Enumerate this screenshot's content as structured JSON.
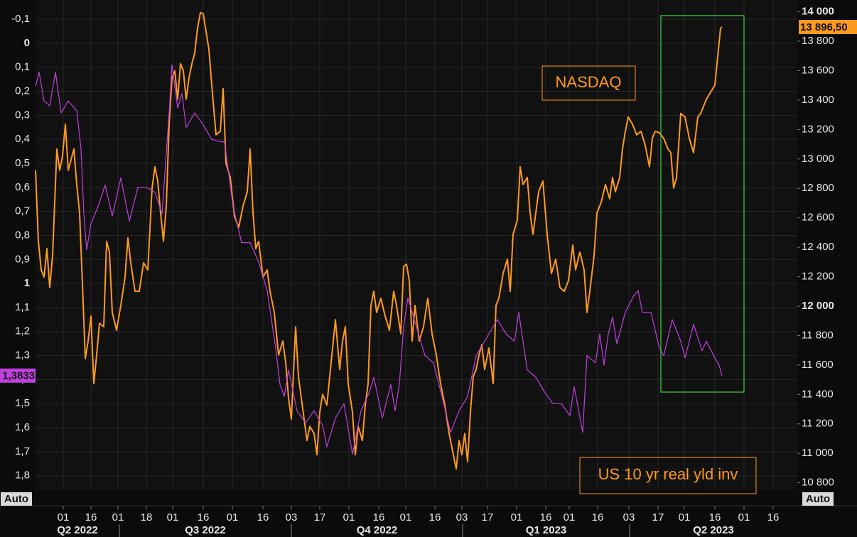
{
  "chart_data": {
    "type": "line",
    "annotations": [
      "NASDAQ",
      "US 10 yr real yld inv"
    ],
    "axis_mode_labels": [
      "Auto",
      "Auto"
    ],
    "xlim": [
      0,
      107.2
    ],
    "xticks": [
      {
        "value": 3.9,
        "label": "01"
      },
      {
        "value": 7.8,
        "label": "16"
      },
      {
        "value": 11.6,
        "label": "01"
      },
      {
        "value": 15.6,
        "label": "18"
      },
      {
        "value": 19.3,
        "label": "01"
      },
      {
        "value": 23.6,
        "label": "16"
      },
      {
        "value": 27.7,
        "label": "01"
      },
      {
        "value": 32,
        "label": "16"
      },
      {
        "value": 36,
        "label": "03"
      },
      {
        "value": 40,
        "label": "17"
      },
      {
        "value": 44.1,
        "label": "01"
      },
      {
        "value": 48.3,
        "label": "16"
      },
      {
        "value": 52.1,
        "label": "01"
      },
      {
        "value": 56.2,
        "label": "16"
      },
      {
        "value": 60,
        "label": "03"
      },
      {
        "value": 63.6,
        "label": "17"
      },
      {
        "value": 67.7,
        "label": "01"
      },
      {
        "value": 71.8,
        "label": "16"
      },
      {
        "value": 75.1,
        "label": "01"
      },
      {
        "value": 79.1,
        "label": "16"
      },
      {
        "value": 83.5,
        "label": "03"
      },
      {
        "value": 87.6,
        "label": "17"
      },
      {
        "value": 91.3,
        "label": "01"
      },
      {
        "value": 95.6,
        "label": "16"
      },
      {
        "value": 99.7,
        "label": "01"
      },
      {
        "value": 103.8,
        "label": "16"
      }
    ],
    "quarters": [
      "Q2 2022",
      "Q3 2022",
      "Q4 2022",
      "Q1 2023",
      "Q2 2023"
    ],
    "quarter_ticks": [
      11.8,
      36,
      60.1,
      83.6
    ],
    "ylim": [
      -0.18,
      1.86
    ],
    "y_inverted": true,
    "yticks": [
      {
        "value": -0.1,
        "label": "-0,1"
      },
      0,
      {
        "value": 0.1,
        "label": "0,1"
      },
      {
        "value": 0.2,
        "label": "0,2"
      },
      {
        "value": 0.3,
        "label": "0,3"
      },
      {
        "value": 0.4,
        "label": "0,4"
      },
      {
        "value": 0.5,
        "label": "0,5"
      },
      {
        "value": 0.6,
        "label": "0,6"
      },
      {
        "value": 0.7,
        "label": "0,7"
      },
      {
        "value": 0.8,
        "label": "0,8"
      },
      {
        "value": 0.9,
        "label": "0,9"
      },
      1,
      {
        "value": 1.1,
        "label": "1,1"
      },
      {
        "value": 1.2,
        "label": "1,2"
      },
      {
        "value": 1.3,
        "label": "1,3"
      },
      {
        "value": 1.4,
        "label": "1,4"
      },
      {
        "value": 1.5,
        "label": "1,5"
      },
      {
        "value": 1.6,
        "label": "1,6"
      },
      {
        "value": 1.7,
        "label": "1,7"
      },
      {
        "value": 1.8,
        "label": "1,8"
      }
    ],
    "y2lim": [
      10750,
      14080
    ],
    "y2ticks": [
      {
        "value": 10800,
        "label": "10 800"
      },
      {
        "value": 11000,
        "label": "11 000"
      },
      {
        "value": 11200,
        "label": "11 200"
      },
      {
        "value": 11400,
        "label": "11 400"
      },
      {
        "value": 11600,
        "label": "11 600"
      },
      {
        "value": 11800,
        "label": "11 800"
      },
      {
        "value": 12000,
        "label": "12 000"
      },
      {
        "value": 12200,
        "label": "12 200"
      },
      {
        "value": 12400,
        "label": "12 400"
      },
      {
        "value": 12600,
        "label": "12 600"
      },
      {
        "value": 12800,
        "label": "12 800"
      },
      {
        "value": 13000,
        "label": "13 000"
      },
      {
        "value": 13200,
        "label": "13 200"
      },
      {
        "value": 13400,
        "label": "13 400"
      },
      {
        "value": 13600,
        "label": "13 600"
      },
      {
        "value": 13800,
        "label": "13 800"
      },
      {
        "value": 14000,
        "label": "14 000"
      }
    ],
    "grid": true,
    "series": [
      {
        "name": "NASDAQ",
        "axis": "y2",
        "color": "#ff9a1f",
        "last_label": "13 896,50",
        "x": [
          0,
          0.4,
          0.8,
          1.2,
          1.6,
          2,
          2.4,
          3,
          3.4,
          3.8,
          4.2,
          4.6,
          5,
          5.4,
          5.8,
          6.2,
          6.6,
          7,
          7.4,
          7.8,
          8.2,
          8.6,
          9,
          9.6,
          10,
          10.4,
          10.8,
          11.4,
          12,
          12.6,
          13,
          13.4,
          14,
          14.6,
          15.2,
          15.8,
          16.4,
          16.8,
          17.2,
          17.6,
          18,
          18.4,
          18.8,
          19.2,
          19.6,
          20,
          20.4,
          20.8,
          21.2,
          21.6,
          22,
          22.4,
          22.8,
          23.2,
          23.6,
          24,
          24.4,
          24.8,
          25.4,
          26,
          26.4,
          26.8,
          27.4,
          28,
          28.6,
          29.2,
          29.8,
          30.2,
          30.6,
          31,
          31.4,
          32,
          32.6,
          33,
          33.6,
          34.2,
          34.8,
          35.2,
          35.6,
          36,
          36.6,
          37,
          37.6,
          38.2,
          38.6,
          39.2,
          39.6,
          40,
          40.4,
          41,
          41.6,
          42.2,
          42.8,
          43.2,
          43.6,
          44,
          44.6,
          45,
          45.4,
          46,
          46.4,
          46.8,
          47.2,
          47.6,
          48,
          48.6,
          49.2,
          49.8,
          50.4,
          50.8,
          51.4,
          51.8,
          52.2,
          52.6,
          53,
          53.4,
          54,
          54.6,
          55.2,
          55.8,
          56.4,
          57,
          57.6,
          58.2,
          58.8,
          59.2,
          59.6,
          60,
          60.4,
          60.8,
          61.2,
          61.6,
          62,
          62.4,
          62.8,
          63.2,
          63.8,
          64.4,
          64.8,
          65.2,
          65.8,
          66.4,
          66.8,
          67.2,
          67.8,
          68.2,
          68.6,
          69.2,
          69.6,
          70,
          70.4,
          70.8,
          71.4,
          72,
          72.6,
          73.2,
          73.8,
          74.4,
          75,
          75.6,
          76,
          76.6,
          77.2,
          77.6,
          78,
          78.6,
          79,
          79.6,
          80.2,
          80.8,
          81.2,
          81.6,
          82.2,
          82.6,
          83,
          83.4,
          84,
          84.6,
          85.2,
          85.8,
          86.4,
          86.8,
          87.2,
          87.8,
          88.4,
          89,
          89.4,
          89.8,
          90.2,
          90.8,
          91.4,
          92,
          92.6,
          93.2,
          93.6,
          94,
          94.4,
          95,
          95.6,
          96,
          96.4,
          96.6
        ],
        "values": [
          12923,
          12440,
          12246,
          12198,
          12391,
          12126,
          12343,
          13068,
          12923,
          13019,
          13237,
          12923,
          12995,
          13068,
          12826,
          12633,
          12150,
          11643,
          11763,
          11932,
          11473,
          11667,
          11884,
          11860,
          12440,
          12367,
          11957,
          11836,
          12005,
          12198,
          12464,
          12295,
          12101,
          12101,
          12295,
          12246,
          12802,
          12947,
          12850,
          12633,
          12440,
          12681,
          13237,
          13551,
          13599,
          13406,
          13647,
          13599,
          13406,
          13551,
          13647,
          13720,
          13889,
          13995,
          13986,
          13865,
          13744,
          13502,
          13164,
          13188,
          13478,
          12971,
          12874,
          12609,
          12536,
          12681,
          12778,
          13068,
          12633,
          12391,
          12440,
          12198,
          12246,
          12101,
          11957,
          11667,
          11763,
          11618,
          11377,
          11232,
          11860,
          11522,
          11304,
          11087,
          11183,
          11135,
          10990,
          11280,
          11401,
          11328,
          11618,
          11908,
          11570,
          11763,
          11860,
          11473,
          11280,
          10990,
          11183,
          11087,
          11328,
          11473,
          12005,
          12101,
          11957,
          12053,
          11932,
          11836,
          12101,
          12005,
          11812,
          12270,
          12285,
          12174,
          11763,
          12005,
          11763,
          11860,
          12053,
          11812,
          11667,
          11473,
          11328,
          11135,
          10990,
          10894,
          11087,
          10990,
          11135,
          10942,
          11280,
          11522,
          11570,
          11667,
          11739,
          11570,
          11715,
          11473,
          12005,
          12053,
          12222,
          12319,
          12101,
          12488,
          12584,
          12947,
          12826,
          12874,
          12633,
          12488,
          12633,
          12778,
          12850,
          12488,
          12222,
          12319,
          12126,
          12101,
          12174,
          12415,
          12246,
          12367,
          12246,
          11957,
          12101,
          12343,
          12633,
          12705,
          12826,
          12729,
          12874,
          12778,
          12874,
          13068,
          13188,
          13285,
          13237,
          13164,
          13188,
          13092,
          12947,
          13140,
          13188,
          13178,
          13140,
          13068,
          13043,
          12802,
          12874,
          13309,
          13285,
          13140,
          13043,
          13285,
          13309,
          13357,
          13406,
          13454,
          13502,
          13696,
          13889,
          13896.5
        ]
      },
      {
        "name": "US 10 yr real yld inv",
        "axis": "y",
        "color": "#c040e0",
        "last_label": "1,3833",
        "x": [
          0,
          0.5,
          1.2,
          2,
          2.8,
          3.6,
          4.6,
          5.8,
          6.4,
          6.8,
          7.2,
          7.8,
          8.8,
          9.8,
          10.8,
          12,
          13.2,
          14.4,
          15.6,
          16.8,
          17.8,
          18.8,
          19.2,
          20,
          20.6,
          21.2,
          22.4,
          23.6,
          24.8,
          26,
          26.6,
          27.8,
          29,
          30.2,
          31.4,
          32.6,
          33.8,
          34.4,
          35,
          35.6,
          36.8,
          38,
          39.2,
          40.4,
          41,
          42.2,
          43.4,
          44.6,
          45.8,
          47,
          47.6,
          48.8,
          50,
          50.6,
          51.2,
          51.8,
          52.4,
          53.6,
          54.8,
          56,
          57.2,
          58.4,
          59.6,
          60.8,
          62,
          63.2,
          64.4,
          65,
          66.2,
          67.4,
          68,
          69.2,
          70.4,
          71.6,
          72.8,
          74,
          75.2,
          75.8,
          77,
          77.6,
          78.8,
          79.4,
          80,
          80.6,
          81.2,
          81.8,
          83,
          84.2,
          84.8,
          85.4,
          86.6,
          87.8,
          88.4,
          89.6,
          90.8,
          91.4,
          92.6,
          93.8,
          94.4,
          95.6,
          96.2,
          96.6
        ],
        "values": [
          0.18,
          0.12,
          0.24,
          0.26,
          0.12,
          0.29,
          0.24,
          0.28,
          0.44,
          0.71,
          0.86,
          0.75,
          0.68,
          0.59,
          0.72,
          0.56,
          0.74,
          0.6,
          0.6,
          0.62,
          0.71,
          0.29,
          0.09,
          0.27,
          0.21,
          0.35,
          0.29,
          0.34,
          0.4,
          0.41,
          0.41,
          0.68,
          0.83,
          0.83,
          0.91,
          1.03,
          1.27,
          1.42,
          1.47,
          1.36,
          1.53,
          1.58,
          1.53,
          1.59,
          1.68,
          1.56,
          1.5,
          1.71,
          1.53,
          1.45,
          1.39,
          1.56,
          1.42,
          1.53,
          1.42,
          1.18,
          1.06,
          1.18,
          1.3,
          1.33,
          1.47,
          1.62,
          1.53,
          1.47,
          1.3,
          1.24,
          1.18,
          1.15,
          1.21,
          1.24,
          1.12,
          1.36,
          1.39,
          1.45,
          1.5,
          1.5,
          1.55,
          1.43,
          1.62,
          1.3,
          1.33,
          1.21,
          1.34,
          1.21,
          1.14,
          1.25,
          1.12,
          1.05,
          1.03,
          1.12,
          1.12,
          1.27,
          1.3,
          1.15,
          1.24,
          1.31,
          1.17,
          1.28,
          1.24,
          1.31,
          1.34,
          1.3833
        ]
      }
    ]
  }
}
